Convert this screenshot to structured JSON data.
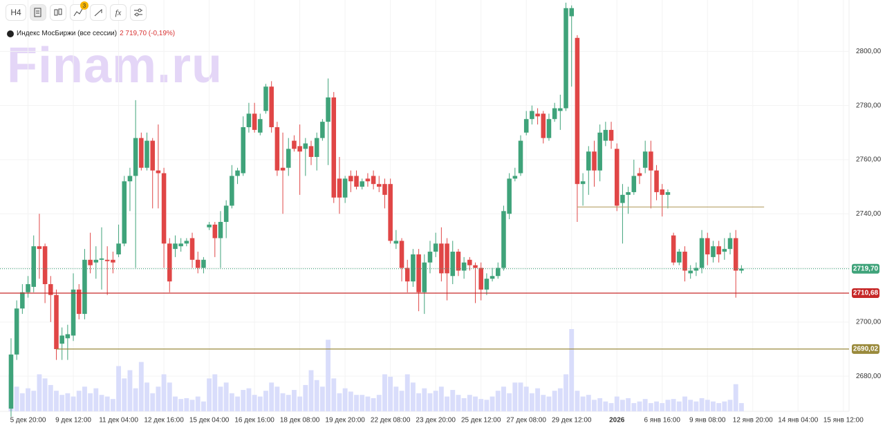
{
  "watermark": "Finam.ru",
  "toolbar": {
    "interval": "H4",
    "badge": "3"
  },
  "legend": {
    "name": "Индекс МосБиржи (все сессии)",
    "value": "2 719,70 (-0,19%)"
  },
  "chart_data": {
    "type": "candlestick",
    "up_color": "#3fa37a",
    "down_color": "#e04646",
    "volume_color": "#d9ddfb",
    "grid": true,
    "xlim": [
      -1.95,
      148
    ],
    "ylim": [
      2667,
      2819
    ],
    "yticks": [
      {
        "value": 2680,
        "label": "2680,00"
      },
      {
        "value": 2700,
        "label": "2700,00"
      },
      {
        "value": 2720,
        "label": ""
      },
      {
        "value": 2740,
        "label": "2740,00"
      },
      {
        "value": 2760,
        "label": "2760,00"
      },
      {
        "value": 2780,
        "label": "2780,00"
      },
      {
        "value": 2800,
        "label": "2800,00"
      }
    ],
    "xticks": [
      {
        "value": 3,
        "label": "5 дек 20:00"
      },
      {
        "value": 11,
        "label": "9 дек 12:00"
      },
      {
        "value": 19,
        "label": "11 дек 04:00"
      },
      {
        "value": 27,
        "label": "12 дек 16:00"
      },
      {
        "value": 35,
        "label": "15 дек 04:00"
      },
      {
        "value": 43,
        "label": "16 дек 16:00"
      },
      {
        "value": 51,
        "label": "18 дек 08:00"
      },
      {
        "value": 59,
        "label": "19 дек 20:00"
      },
      {
        "value": 67,
        "label": "22 дек 08:00"
      },
      {
        "value": 75,
        "label": "23 дек 20:00"
      },
      {
        "value": 83,
        "label": "25 дек 12:00"
      },
      {
        "value": 91,
        "label": "27 дек 08:00"
      },
      {
        "value": 99,
        "label": "29 дек 12:00"
      },
      {
        "value": 107,
        "label": "2026"
      },
      {
        "value": 115,
        "label": "6 янв 16:00"
      },
      {
        "value": 123,
        "label": "9 янв 08:00"
      },
      {
        "value": 131,
        "label": "12 янв 20:00"
      },
      {
        "value": 139,
        "label": "14 янв 04:00"
      },
      {
        "value": 147,
        "label": "15 янв 12:00"
      }
    ],
    "levels": [
      {
        "value": 2719.7,
        "label": "2719,70",
        "color": "#3fa37a",
        "dotted": true,
        "x_range": [
          -1.95,
          148
        ]
      },
      {
        "value": 2710.68,
        "label": "2710,68",
        "color": "#c62828",
        "x_range": [
          -1.95,
          148
        ]
      },
      {
        "value": 2690.02,
        "label": "2690,02",
        "color": "#9a8a3c",
        "x_range": [
          8,
          148
        ]
      },
      {
        "value": 2742.5,
        "color": "#b8a26a",
        "x_range": [
          100,
          133
        ]
      }
    ],
    "open": [
      2668,
      2688,
      2705,
      2711,
      2713,
      2728,
      2728,
      2714,
      2710,
      2692,
      2694,
      2695,
      2712,
      2703,
      2723,
      2722,
      2723,
      2723,
      2723,
      2725,
      2729,
      2752,
      2754,
      2768,
      2757,
      2767,
      2756,
      2755,
      2729,
      2727,
      2728,
      2729,
      2731,
      2723,
      2720,
      2735,
      2736,
      2731,
      2737,
      2743,
      2754,
      2755,
      2772,
      2777,
      2770,
      2778,
      2787,
      2772,
      2757,
      2757,
      2767,
      2765,
      2764,
      2765,
      2761,
      2768,
      2774,
      2783,
      2753,
      2746,
      2754,
      2754,
      2750,
      2753,
      2754,
      2751,
      2751,
      2751,
      2729,
      2730,
      2720,
      2715,
      2725,
      2711,
      2722,
      2726,
      2729,
      2729,
      2717,
      2726,
      2719,
      2723,
      2721,
      2720,
      2712,
      2716,
      2717,
      2720,
      2740,
      2753,
      2755,
      2770,
      2775,
      2777,
      2777,
      2768,
      2775,
      2778,
      2779,
      2813,
      2805,
      2751,
      2756,
      2763,
      2756,
      2767,
      2771,
      2764,
      2744,
      2747,
      2748,
      2755,
      2757,
      2763,
      2756,
      2749,
      2747,
      2732,
      2722,
      2726,
      2718,
      2719,
      2720,
      2731,
      2724,
      2728,
      2726,
      2727,
      2731,
      2719
    ],
    "high": [
      2694,
      2708,
      2714,
      2717,
      2732,
      2740,
      2729,
      2717,
      2712,
      2698,
      2699,
      2718,
      2714,
      2727,
      2733,
      2728,
      2735,
      2728,
      2726,
      2736,
      2754,
      2757,
      2782,
      2770,
      2770,
      2768,
      2773,
      2757,
      2731,
      2732,
      2731,
      2731,
      2733,
      2726,
      2724,
      2737,
      2737,
      2741,
      2745,
      2758,
      2757,
      2776,
      2781,
      2781,
      2777,
      2788,
      2789,
      2774,
      2770,
      2768,
      2769,
      2773,
      2768,
      2767,
      2770,
      2775,
      2790,
      2785,
      2761,
      2754,
      2756,
      2756,
      2753,
      2755,
      2756,
      2754,
      2753,
      2753,
      2734,
      2731,
      2723,
      2727,
      2727,
      2725,
      2730,
      2733,
      2735,
      2731,
      2730,
      2727,
      2724,
      2724,
      2722,
      2722,
      2718,
      2720,
      2722,
      2743,
      2755,
      2757,
      2769,
      2778,
      2780,
      2779,
      2778,
      2777,
      2781,
      2784,
      2818,
      2817,
      2806,
      2755,
      2765,
      2767,
      2773,
      2774,
      2774,
      2766,
      2751,
      2750,
      2760,
      2757,
      2767,
      2767,
      2758,
      2751,
      2749,
      2733,
      2727,
      2728,
      2721,
      2722,
      2734,
      2733,
      2730,
      2730,
      2731,
      2733,
      2734,
      2721
    ],
    "low": [
      2665,
      2686,
      2703,
      2709,
      2711,
      2716,
      2707,
      2700,
      2686,
      2686,
      2686,
      2693,
      2701,
      2701,
      2718,
      2716,
      2712,
      2710,
      2718,
      2724,
      2728,
      2741,
      2720,
      2756,
      2756,
      2742,
      2742,
      2720,
      2711,
      2724,
      2726,
      2728,
      2720,
      2718,
      2718,
      2734,
      2724,
      2720,
      2731,
      2742,
      2751,
      2754,
      2770,
      2770,
      2769,
      2777,
      2770,
      2754,
      2740,
      2754,
      2763,
      2747,
      2754,
      2758,
      2756,
      2767,
      2758,
      2744,
      2740,
      2744,
      2748,
      2749,
      2749,
      2750,
      2749,
      2748,
      2742,
      2729,
      2727,
      2715,
      2711,
      2713,
      2704,
      2703,
      2718,
      2724,
      2715,
      2708,
      2714,
      2717,
      2716,
      2719,
      2707,
      2708,
      2710,
      2715,
      2716,
      2719,
      2738,
      2752,
      2754,
      2769,
      2773,
      2773,
      2766,
      2767,
      2774,
      2771,
      2778,
      2787,
      2737,
      2743,
      2747,
      2750,
      2752,
      2765,
      2764,
      2741,
      2729,
      2740,
      2747,
      2751,
      2755,
      2742,
      2745,
      2739,
      2742,
      2721,
      2721,
      2715,
      2716,
      2717,
      2718,
      2721,
      2722,
      2722,
      2723,
      2725,
      2709,
      2718
    ],
    "close": [
      2688,
      2705,
      2711,
      2714,
      2728,
      2727,
      2714,
      2710,
      2690,
      2695,
      2695.5,
      2712,
      2703,
      2723,
      2721,
      2723,
      2723.5,
      2722.5,
      2722,
      2729,
      2752,
      2754,
      2768,
      2757,
      2767,
      2756,
      2755,
      2729,
      2715,
      2729,
      2729,
      2730,
      2723,
      2720,
      2723,
      2736,
      2731,
      2737,
      2743,
      2754,
      2756,
      2772,
      2777,
      2771,
      2775,
      2787,
      2772,
      2756,
      2756,
      2764,
      2764,
      2763,
      2766,
      2761,
      2768,
      2774,
      2783,
      2746,
      2746,
      2753,
      2752,
      2750,
      2752,
      2752,
      2751,
      2750,
      2747,
      2730,
      2730,
      2720,
      2715,
      2725,
      2711,
      2722,
      2726,
      2729,
      2718,
      2718,
      2726,
      2719,
      2722,
      2721,
      2720,
      2712,
      2716,
      2717,
      2720,
      2741,
      2753,
      2754,
      2767,
      2775,
      2778,
      2776,
      2768,
      2775,
      2779,
      2779,
      2816,
      2816,
      2751,
      2752,
      2763,
      2756,
      2770,
      2771,
      2767,
      2743,
      2747,
      2748,
      2754,
      2754,
      2763,
      2756,
      2748,
      2747,
      2748,
      2722,
      2726,
      2719,
      2719,
      2720,
      2731,
      2725,
      2728,
      2725,
      2727,
      2731,
      2719,
      2719.7
    ],
    "volume": [
      45,
      30,
      22,
      28,
      25,
      45,
      40,
      32,
      25,
      20,
      22,
      18,
      25,
      30,
      22,
      28,
      20,
      18,
      15,
      55,
      40,
      50,
      28,
      60,
      35,
      22,
      30,
      45,
      35,
      18,
      15,
      16,
      14,
      18,
      12,
      40,
      45,
      30,
      35,
      22,
      18,
      26,
      28,
      20,
      18,
      25,
      35,
      30,
      22,
      20,
      26,
      18,
      32,
      50,
      38,
      30,
      87,
      40,
      22,
      28,
      24,
      20,
      20,
      18,
      16,
      20,
      45,
      42,
      30,
      25,
      45,
      35,
      22,
      28,
      22,
      25,
      30,
      18,
      26,
      20,
      16,
      20,
      18,
      15,
      14,
      18,
      25,
      30,
      22,
      35,
      35,
      30,
      22,
      28,
      20,
      18,
      25,
      28,
      45,
      100,
      25,
      18,
      20,
      14,
      16,
      12,
      10,
      18,
      14,
      16,
      10,
      12,
      15,
      10,
      12,
      10,
      14,
      15,
      12,
      18,
      14,
      12,
      16,
      14,
      12,
      10,
      12,
      14,
      33,
      10
    ]
  }
}
